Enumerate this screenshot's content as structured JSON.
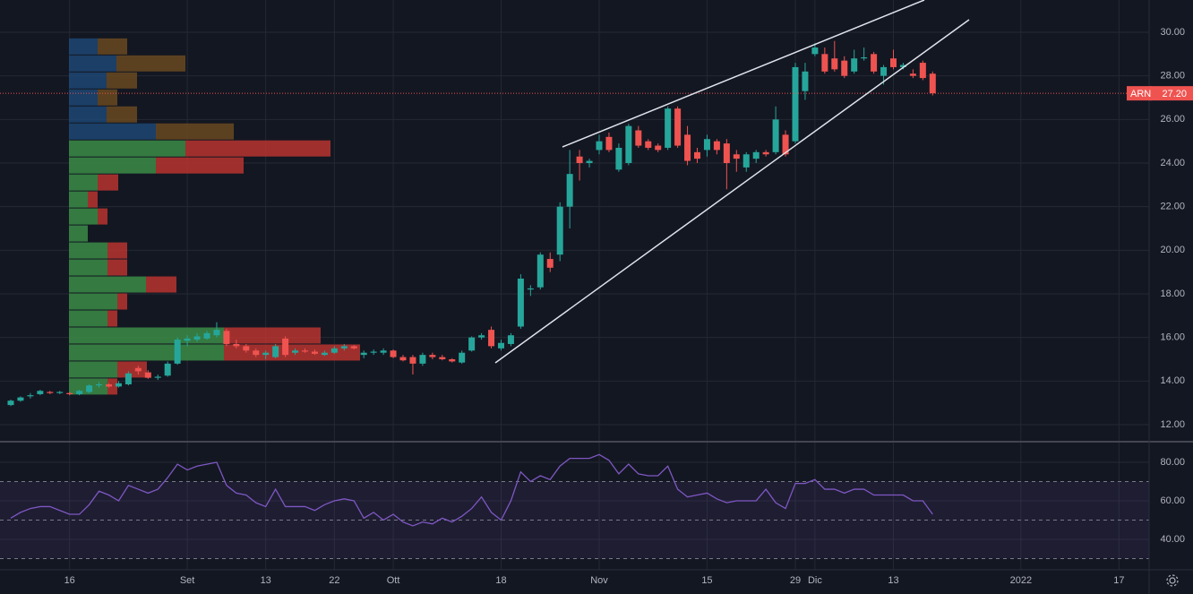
{
  "chart_data": [
    {
      "type": "candlestick",
      "symbol": "ARN",
      "categories": [
        null,
        null,
        null,
        null,
        null,
        null,
        "16",
        null,
        null,
        null,
        null,
        null,
        null,
        null,
        null,
        null,
        null,
        null,
        "Set",
        null,
        null,
        null,
        null,
        null,
        null,
        null,
        "13",
        null,
        null,
        null,
        null,
        null,
        null,
        "22",
        null,
        null,
        null,
        null,
        null,
        "Ott",
        null,
        null,
        null,
        null,
        null,
        null,
        null,
        null,
        null,
        null,
        "18",
        null,
        null,
        null,
        null,
        null,
        null,
        null,
        null,
        null,
        "Nov",
        null,
        null,
        null,
        null,
        null,
        null,
        null,
        null,
        null,
        null,
        "15",
        null,
        null,
        null,
        null,
        null,
        null,
        null,
        null,
        "29",
        null,
        "Dic",
        null,
        null,
        null,
        null,
        null,
        null,
        null,
        "13",
        null,
        null,
        null,
        null,
        null,
        null,
        null,
        null,
        null,
        null,
        null,
        null,
        "2022",
        null,
        null,
        null,
        null,
        null,
        null,
        null,
        null,
        null,
        "17",
        null,
        null,
        null
      ],
      "open": [
        12.9,
        13.1,
        13.3,
        13.4,
        13.5,
        13.45,
        13.45,
        13.4,
        13.5,
        13.8,
        13.85,
        13.75,
        13.85,
        14.6,
        14.4,
        14.15,
        14.25,
        14.8,
        15.85,
        15.9,
        15.95,
        16.1,
        16.3,
        15.7,
        15.6,
        15.4,
        15.2,
        15.1,
        15.95,
        15.3,
        15.4,
        15.35,
        15.2,
        15.3,
        15.5,
        15.6,
        15.2,
        15.3,
        15.3,
        15.4,
        15.1,
        15.1,
        14.8,
        15.2,
        15.1,
        15.0,
        14.85,
        15.4,
        16.0,
        16.35,
        15.5,
        15.7,
        16.5,
        18.2,
        18.3,
        19.6,
        19.8,
        22.0,
        24.3,
        24.0,
        24.6,
        25.2,
        23.7,
        24.0,
        25.5,
        25.0,
        24.8,
        24.7,
        26.5,
        25.3,
        24.5,
        24.6,
        25.0,
        24.9,
        24.4,
        23.8,
        24.2,
        24.5,
        24.5,
        25.3,
        25.0,
        27.3,
        29.0,
        29.0,
        28.8,
        28.7,
        28.2,
        28.8,
        29.0,
        28.0,
        28.8,
        28.4,
        28.1,
        28.6,
        28.1,
        null,
        null,
        null,
        null,
        null,
        null,
        null,
        null,
        null,
        null,
        null,
        null,
        null,
        null,
        null,
        null,
        null,
        null,
        null,
        null,
        null,
        null
      ],
      "high": [
        13.15,
        13.3,
        13.45,
        13.6,
        13.55,
        13.55,
        13.5,
        13.6,
        13.85,
        13.95,
        13.9,
        14.0,
        14.45,
        14.7,
        14.5,
        14.3,
        14.9,
        16.0,
        16.1,
        16.2,
        16.3,
        16.7,
        16.4,
        15.9,
        15.7,
        15.5,
        15.4,
        15.7,
        16.05,
        15.5,
        15.5,
        15.45,
        15.4,
        15.6,
        15.7,
        15.65,
        15.4,
        15.45,
        15.5,
        15.45,
        15.2,
        15.2,
        15.3,
        15.3,
        15.2,
        15.05,
        15.4,
        16.05,
        16.2,
        16.5,
        15.9,
        16.2,
        18.9,
        18.4,
        19.9,
        19.9,
        22.2,
        24.6,
        24.6,
        24.2,
        25.3,
        25.4,
        24.9,
        25.8,
        25.7,
        25.1,
        24.9,
        26.6,
        26.6,
        25.7,
        24.7,
        25.3,
        25.1,
        25.1,
        24.6,
        24.5,
        24.6,
        24.6,
        26.6,
        25.5,
        28.6,
        28.6,
        29.5,
        29.3,
        29.6,
        28.9,
        29.2,
        29.3,
        29.1,
        28.5,
        29.2,
        28.6,
        28.3,
        28.7,
        28.2,
        null,
        null,
        null,
        null,
        null,
        null,
        null,
        null,
        null,
        null,
        null,
        null,
        null,
        null,
        null,
        null,
        null,
        null,
        null,
        null,
        null,
        null
      ],
      "low": [
        12.85,
        13.05,
        13.2,
        13.35,
        13.4,
        13.4,
        13.35,
        13.35,
        13.45,
        13.7,
        13.7,
        13.7,
        13.8,
        14.3,
        14.1,
        14.05,
        14.2,
        14.75,
        15.6,
        15.8,
        15.9,
        16.0,
        15.6,
        15.5,
        15.3,
        15.1,
        15.0,
        15.05,
        15.1,
        15.2,
        15.3,
        15.2,
        15.15,
        15.25,
        15.4,
        15.45,
        15.05,
        15.2,
        15.2,
        15.05,
        14.9,
        14.3,
        14.7,
        15.0,
        14.95,
        14.85,
        14.8,
        15.35,
        15.9,
        15.5,
        15.4,
        15.6,
        16.4,
        17.9,
        18.2,
        19.0,
        19.5,
        21.0,
        23.2,
        23.8,
        24.4,
        24.5,
        23.6,
        23.9,
        24.7,
        24.6,
        24.5,
        24.6,
        24.7,
        23.9,
        24.0,
        24.3,
        24.4,
        22.8,
        23.6,
        23.6,
        24.0,
        24.3,
        24.4,
        24.3,
        24.9,
        26.9,
        28.9,
        28.1,
        28.2,
        27.9,
        28.1,
        28.7,
        28.1,
        27.6,
        28.3,
        28.3,
        27.9,
        27.8,
        27.1,
        null,
        null,
        null,
        null,
        null,
        null,
        null,
        null,
        null,
        null,
        null,
        null,
        null,
        null,
        null,
        null,
        null,
        null,
        null,
        null,
        null,
        null
      ],
      "close": [
        13.1,
        13.25,
        13.35,
        13.55,
        13.45,
        13.5,
        13.4,
        13.55,
        13.8,
        13.85,
        13.75,
        13.9,
        14.35,
        14.45,
        14.15,
        14.2,
        14.8,
        15.9,
        15.95,
        16.05,
        16.2,
        16.35,
        15.7,
        15.6,
        15.4,
        15.2,
        15.3,
        15.6,
        15.2,
        15.4,
        15.35,
        15.25,
        15.3,
        15.5,
        15.6,
        15.5,
        15.3,
        15.35,
        15.4,
        15.1,
        14.95,
        14.8,
        15.2,
        15.1,
        15.0,
        14.9,
        15.3,
        16.0,
        16.1,
        15.6,
        15.75,
        16.1,
        18.7,
        18.25,
        19.8,
        19.2,
        22.0,
        23.5,
        24.0,
        24.1,
        25.0,
        24.6,
        24.7,
        25.7,
        24.8,
        24.7,
        24.6,
        26.5,
        24.8,
        24.1,
        24.2,
        25.1,
        24.6,
        24.0,
        24.2,
        24.4,
        24.5,
        24.4,
        26.0,
        24.4,
        28.4,
        28.2,
        29.3,
        28.2,
        28.3,
        28.0,
        28.8,
        28.85,
        28.2,
        28.4,
        28.4,
        28.5,
        28.0,
        27.9,
        27.2,
        null,
        null,
        null,
        null,
        null,
        null,
        null,
        null,
        null,
        null,
        null,
        null,
        null,
        null,
        null,
        null,
        null,
        null,
        null,
        null,
        null,
        null
      ],
      "up_color": "#26a69a",
      "down_color": "#ef5350",
      "ylim": [
        11.26,
        31.48
      ],
      "yticks": [
        {
          "value": 12,
          "label": "12.00"
        },
        {
          "value": 14,
          "label": "14.00"
        },
        {
          "value": 16,
          "label": "16.00"
        },
        {
          "value": 18,
          "label": "18.00"
        },
        {
          "value": 20,
          "label": "20.00"
        },
        {
          "value": 22,
          "label": "22.00"
        },
        {
          "value": 24,
          "label": "24.00"
        },
        {
          "value": 26,
          "label": "26.00"
        },
        {
          "value": 28,
          "label": "28.00"
        },
        {
          "value": 30,
          "label": "30.00"
        }
      ],
      "grid": true,
      "last_price": {
        "value": 27.2,
        "label": "27.20"
      },
      "volume_profile": {
        "bins": [
          13.36,
          14.14,
          14.92,
          15.7,
          16.48,
          17.26,
          18.04,
          18.82,
          19.6,
          20.38,
          21.16,
          21.94,
          22.72,
          23.5,
          24.28,
          25.06,
          25.84,
          26.62,
          27.4,
          28.18,
          28.96,
          29.74
        ],
        "up": [
          43,
          54,
          173,
          173,
          43,
          54,
          86,
          43,
          43,
          21,
          32,
          21,
          32,
          97,
          130,
          97,
          42,
          32,
          42,
          53,
          32
        ],
        "down": [
          11,
          33,
          152,
          108,
          11,
          11,
          34,
          22,
          22,
          0,
          11,
          11,
          23,
          98,
          162,
          87,
          34,
          22,
          34,
          77,
          33
        ],
        "value_area": [
          13.36,
          25.06
        ],
        "up_color": "#3b8c46",
        "down_color": "#b8342f",
        "up_color_outside": "#1d4673",
        "down_color_outside": "#6a4920"
      }
    },
    {
      "type": "line",
      "values": [
        51,
        54,
        56,
        57,
        57,
        55,
        53,
        53,
        58,
        65,
        63,
        60,
        68,
        66,
        64,
        66,
        72,
        79,
        76,
        78,
        79,
        80,
        68,
        64,
        63,
        59,
        57,
        66,
        57,
        57,
        57,
        55,
        58,
        60,
        61,
        60,
        51,
        54,
        50,
        53,
        49,
        47,
        49,
        48,
        51,
        49,
        52,
        56,
        62,
        54,
        50,
        60,
        75,
        70,
        73,
        71,
        78,
        82,
        82,
        82,
        84,
        81,
        74,
        79,
        74,
        73,
        73,
        78,
        66,
        62,
        63,
        64,
        61,
        59,
        60,
        60,
        60,
        66,
        59,
        56,
        69,
        69,
        71,
        66,
        66,
        64,
        66,
        66,
        63,
        63,
        63,
        63,
        60,
        60,
        53,
        null,
        null,
        null,
        null,
        null,
        null,
        null,
        null,
        null,
        null,
        null,
        null,
        null,
        null,
        null,
        null,
        null,
        null,
        null,
        null,
        null,
        null
      ],
      "color": "#7e57c2",
      "ylim": [
        24.2,
        90.2
      ],
      "yticks": [
        {
          "value": 40,
          "label": "40.00"
        },
        {
          "value": 60,
          "label": "60.00"
        },
        {
          "value": 80,
          "label": "80.00"
        }
      ],
      "bands": [
        30,
        50,
        70
      ],
      "band_color": "#7e57c2"
    }
  ]
}
